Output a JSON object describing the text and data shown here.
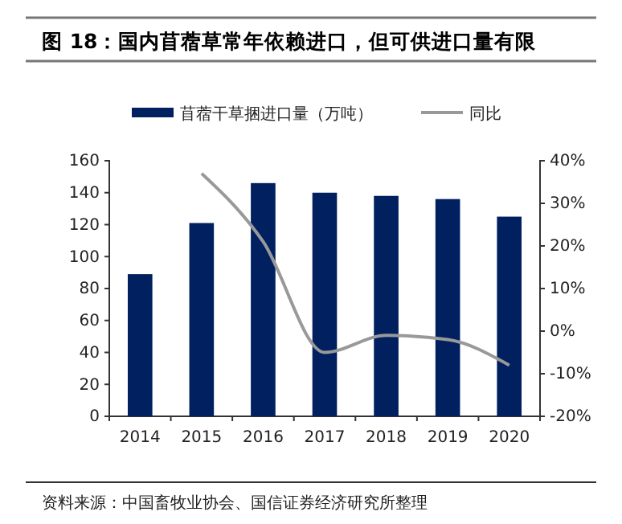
{
  "chart_data": {
    "type": "bar",
    "title": "图 18：国内苜蓿草常年依赖进口，但可供进口量有限",
    "categories": [
      "2014",
      "2015",
      "2016",
      "2017",
      "2018",
      "2019",
      "2020"
    ],
    "series": [
      {
        "name": "苜蓿干草捆进口量（万吨）",
        "color": "#002060",
        "values": [
          89,
          121,
          146,
          140,
          138,
          136,
          125
        ]
      },
      {
        "name": "同比",
        "type": "line",
        "axis": "y2",
        "color": "#999999",
        "values": [
          null,
          37,
          21,
          -5,
          -1,
          -2,
          -8
        ]
      }
    ],
    "ylim": [
      0,
      160
    ],
    "yticks": [
      0,
      20,
      40,
      60,
      80,
      100,
      120,
      140,
      160
    ],
    "y2lim": [
      -20,
      40
    ],
    "y2ticks": [
      {
        "value": -20,
        "label": "-20%"
      },
      {
        "value": -10,
        "label": "-10%"
      },
      {
        "value": 0,
        "label": "0%"
      },
      {
        "value": 10,
        "label": "10%"
      },
      {
        "value": 20,
        "label": "20%"
      },
      {
        "value": 30,
        "label": "30%"
      },
      {
        "value": 40,
        "label": "40%"
      }
    ],
    "grid": false,
    "legend": "top",
    "line_style": "solid",
    "marker": "none",
    "annotations": [
      "资料来源：中国畜牧业协会、国信证券经济研究所整理"
    ]
  }
}
